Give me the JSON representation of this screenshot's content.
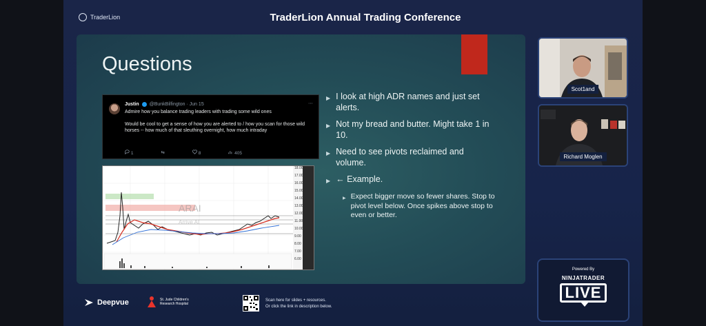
{
  "header": {
    "brand": "TraderLion",
    "conference_title": "TraderLion Annual Trading Conference"
  },
  "slide": {
    "title": "Questions",
    "tweet": {
      "name": "Justin",
      "handle_date": "@BunkBilfington · Jun 15",
      "more_icon": "⋯",
      "body": [
        "Admire how you balance trading leaders with trading some wild ones",
        "Would be cool to get a sense of how you are alerted to / how you scan for those wild horses -- how much of that sleuthing overnight, how much intraday"
      ],
      "replies": "1",
      "likes": "8",
      "views": "405"
    },
    "chart": {
      "ticker": "ARAI",
      "watermark": "Arrive AI",
      "y_ticks": [
        "18.00",
        "17.00",
        "16.00",
        "15.00",
        "14.00",
        "13.00",
        "12.00",
        "11.00",
        "10.00",
        "9.00",
        "8.00",
        "7.00",
        "6.00"
      ]
    },
    "bullets": [
      "I look at high ADR names and just set alerts.",
      "Not my bread and butter. Might take 1 in 10.",
      "Need to see pivots reclaimed and volume.",
      "← Example."
    ],
    "sub_bullet": "Expect bigger move so fewer shares.  Stop to pivot level below.  Once spikes above stop to even or better."
  },
  "speakers": [
    {
      "name": "Scot1and"
    },
    {
      "name": "Richard Moglen"
    }
  ],
  "powered": {
    "label": "Powered By",
    "brand": "NINJATRADER",
    "badge": "LIVE"
  },
  "footer": {
    "sponsor_1": "Deepvue",
    "sponsor_2_line1": "St. Jude Children's",
    "sponsor_2_line2": "Research Hospital",
    "qr_line1": "Scan here for slides + resources.",
    "qr_line2": "Or click the link in description below."
  },
  "colors": {
    "accent_red": "#c0281c",
    "slide_teal": "#2d5e63",
    "frame_blue": "#17244a"
  }
}
